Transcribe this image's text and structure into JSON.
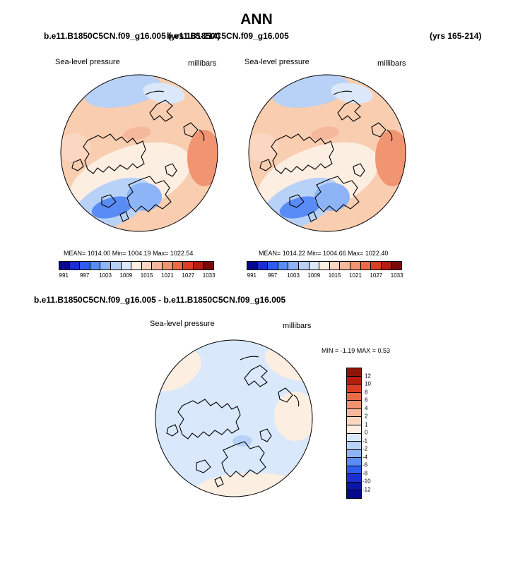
{
  "title": "ANN",
  "case_left": "b.e11.B1850C5CN.f09_g16.005 (yrs 165-214)",
  "case_right": "b.e11.B1850C5CN.f09_g16.005",
  "case_right_years": "(yrs 165-214)",
  "diff_title": "b.e11.B1850C5CN.f09_g16.005 - b.e11.B1850C5CN.f09_g16.005",
  "panels": [
    {
      "variable": "Sea-level pressure",
      "units": "millibars",
      "stats": "MEAN= 1014.00  Min= 1004.19  Max= 1022.54"
    },
    {
      "variable": "Sea-level pressure",
      "units": "millibars",
      "stats": "MEAN= 1014.22  Min= 1004.66  Max= 1022.40"
    }
  ],
  "diff_panel": {
    "variable": "Sea-level pressure",
    "units": "millibars",
    "stats": "MIN =  -1.19 MAX =   0.53"
  },
  "abs_colorbar": {
    "ticks": [
      "991",
      "997",
      "1003",
      "1009",
      "1015",
      "1021",
      "1027",
      "1033"
    ],
    "colors": [
      "#08088f",
      "#1a2fd0",
      "#2e5bf0",
      "#5a8cf5",
      "#8cb4f7",
      "#b8d1f7",
      "#dbe8fa",
      "#fdeee2",
      "#fbd6c0",
      "#f6b89d",
      "#f19472",
      "#eb6b47",
      "#dc3d25",
      "#b71c10",
      "#7a0a05"
    ]
  },
  "diff_colorbar": {
    "ticks": [
      "12",
      "10",
      "8",
      "6",
      "4",
      "2",
      "1",
      "0",
      "-1",
      "-2",
      "-4",
      "-6",
      "-8",
      "-10",
      "-12"
    ],
    "colors": [
      "#8e1508",
      "#b71c10",
      "#dc3d25",
      "#eb6b47",
      "#f19472",
      "#f6b89d",
      "#fbd6c0",
      "#fdeee2",
      "#dbe8fa",
      "#b8d1f7",
      "#8cb4f7",
      "#5a8cf5",
      "#2e5bf0",
      "#1a2fd0",
      "#0b16a8",
      "#08088f"
    ]
  },
  "colors": {
    "land_outline": "#000000",
    "base_positive": "#f9cdb0",
    "diff_background": "#d9e8fb",
    "diff_positive": "#fdeee2"
  }
}
